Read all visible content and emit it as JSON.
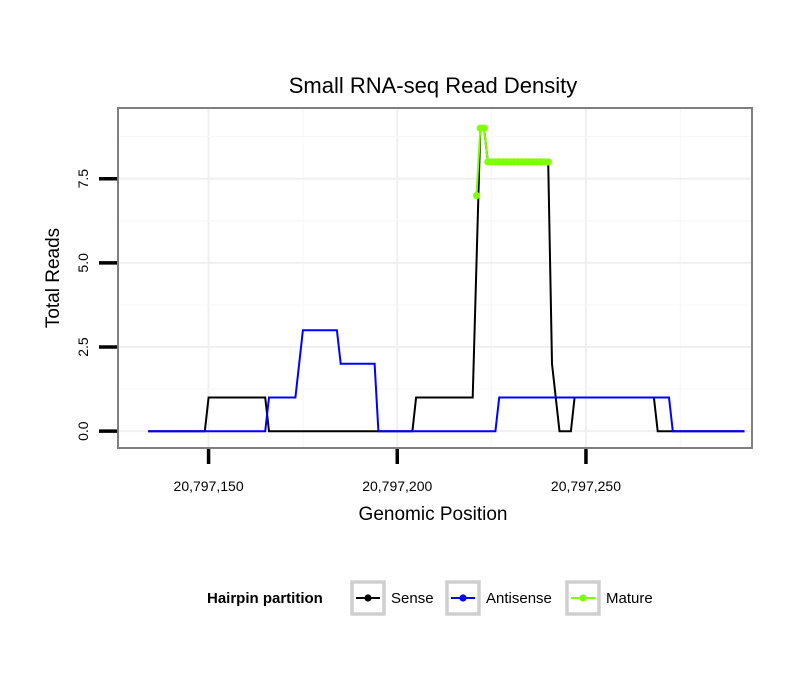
{
  "chart_data": {
    "type": "line",
    "title": "Small RNA-seq Read Density",
    "xlabel": "Genomic Position",
    "ylabel": "Total Reads",
    "xlim": [
      20797126,
      20797294
    ],
    "ylim": [
      -0.5,
      9.6
    ],
    "xticks": [
      20797150,
      20797200,
      20797250
    ],
    "xtick_labels": [
      "20,797,150",
      "20,797,200",
      "20,797,250"
    ],
    "yticks": [
      0,
      2.5,
      5,
      7.5
    ],
    "ytick_labels": [
      "0.0",
      "2.5",
      "5.0",
      "7.5"
    ],
    "grid": true,
    "legend_position": "bottom",
    "legend_title": "Hairpin partition",
    "series": [
      {
        "name": "Sense",
        "color": "#000000",
        "points": [
          [
            20797134,
            0
          ],
          [
            20797149,
            0
          ],
          [
            20797150,
            1
          ],
          [
            20797165,
            1
          ],
          [
            20797166,
            0
          ],
          [
            20797204,
            0
          ],
          [
            20797205,
            1
          ],
          [
            20797220,
            1
          ],
          [
            20797222,
            9
          ],
          [
            20797223,
            9
          ],
          [
            20797224,
            8
          ],
          [
            20797240,
            8
          ],
          [
            20797241,
            2
          ],
          [
            20797243,
            0
          ],
          [
            20797246,
            0
          ],
          [
            20797247,
            1
          ],
          [
            20797268,
            1
          ],
          [
            20797269,
            0
          ],
          [
            20797292,
            0
          ]
        ]
      },
      {
        "name": "Antisense",
        "color": "#0000ff",
        "points": [
          [
            20797134,
            0
          ],
          [
            20797165,
            0
          ],
          [
            20797166,
            1
          ],
          [
            20797173,
            1
          ],
          [
            20797175,
            3
          ],
          [
            20797184,
            3
          ],
          [
            20797185,
            2
          ],
          [
            20797194,
            2
          ],
          [
            20797195,
            0
          ],
          [
            20797226,
            0
          ],
          [
            20797227,
            1
          ],
          [
            20797272,
            1
          ],
          [
            20797273,
            0
          ],
          [
            20797292,
            0
          ]
        ]
      },
      {
        "name": "Mature",
        "color": "#7fff00",
        "points": [
          [
            20797221,
            7
          ],
          [
            20797222,
            9
          ],
          [
            20797223,
            9
          ],
          [
            20797224,
            8
          ],
          [
            20797225,
            8
          ],
          [
            20797226,
            8
          ],
          [
            20797227,
            8
          ],
          [
            20797228,
            8
          ],
          [
            20797229,
            8
          ],
          [
            20797230,
            8
          ],
          [
            20797231,
            8
          ],
          [
            20797232,
            8
          ],
          [
            20797233,
            8
          ],
          [
            20797234,
            8
          ],
          [
            20797235,
            8
          ],
          [
            20797236,
            8
          ],
          [
            20797237,
            8
          ],
          [
            20797238,
            8
          ],
          [
            20797239,
            8
          ],
          [
            20797240,
            8
          ]
        ]
      }
    ]
  }
}
